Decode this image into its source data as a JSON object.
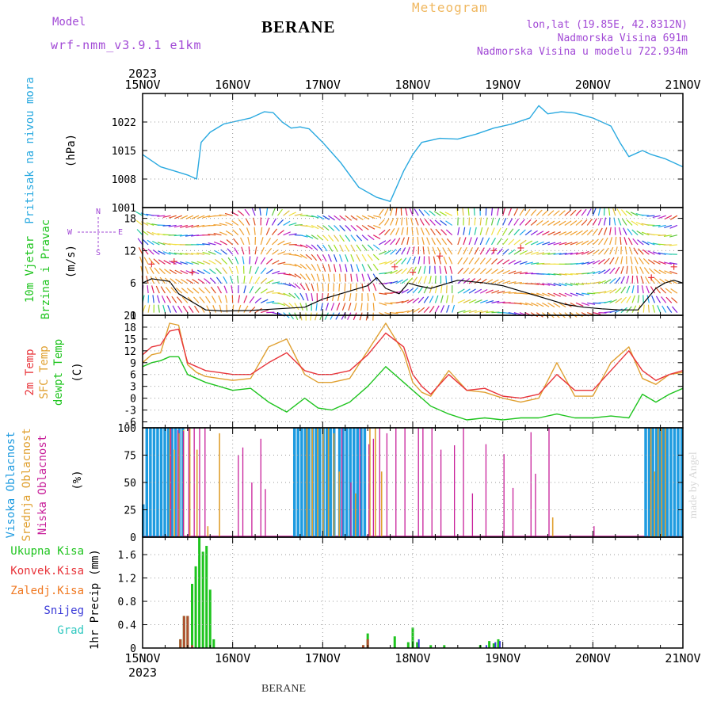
{
  "header": {
    "model_label": "Model",
    "model_name": "wrf-nmm_v3.9.1 e1km",
    "station": "BERANE",
    "title": "Meteogram",
    "lonlat": "lon,lat (19.85E, 42.8312N)",
    "altitude": "Nadmorska Visina 691m",
    "model_altitude": "Nadmorska Visina u modelu 722.934m",
    "footer_station": "BERANE",
    "credit": "made by Angel"
  },
  "colors": {
    "pressure": "#29a9e0",
    "temp2m": "#e8343a",
    "sfc_temp": "#e0a030",
    "dewpt": "#1ec41e",
    "high_cloud": "#1e9be0",
    "mid_cloud": "#e0a030",
    "low_cloud": "#c8209a",
    "total_precip": "#1ec41e",
    "conv_precip": "#e8343a",
    "frozen_precip": "#f07820",
    "snow": "#3b3bd8",
    "hail": "#30c8c0",
    "wind_speed": "#000000",
    "gust": "#e8343a",
    "title_purple": "#a24ad6"
  },
  "chart_data": [
    {
      "type": "line",
      "name": "pressure",
      "ylabel_main": "Pritisak na nivou mora",
      "ylabel_unit": "(hPa)",
      "ylim": [
        1001,
        1029
      ],
      "yticks": [
        1001,
        1008,
        1015,
        1022
      ],
      "x_labels": [
        "15NOV",
        "16NOV",
        "17NOV",
        "18NOV",
        "19NOV",
        "20NOV",
        "21NOV"
      ],
      "x_year": "2023",
      "grid": true,
      "series": [
        {
          "name": "",
          "x": [
            0,
            0.2,
            0.35,
            0.5,
            0.6,
            0.65,
            0.75,
            0.9,
            1.0,
            1.2,
            1.35,
            1.45,
            1.55,
            1.65,
            1.75,
            1.85,
            2.0,
            2.2,
            2.4,
            2.6,
            2.75,
            2.9,
            3.0,
            3.1,
            3.3,
            3.5,
            3.7,
            3.9,
            4.1,
            4.3,
            4.4,
            4.5,
            4.65,
            4.8,
            5.0,
            5.2,
            5.3,
            5.4,
            5.55,
            5.65,
            5.8,
            6.0
          ],
          "values": [
            1014,
            1011,
            1010,
            1009,
            1008,
            1017,
            1019.5,
            1021.5,
            1022,
            1023,
            1024.5,
            1024.3,
            1022,
            1020.5,
            1020.8,
            1020.3,
            1017,
            1012,
            1006,
            1003.5,
            1002.5,
            1010,
            1014,
            1017,
            1018,
            1017.8,
            1019,
            1020.5,
            1021.5,
            1023,
            1026,
            1024,
            1024.5,
            1024.2,
            1023,
            1021,
            1017,
            1013.5,
            1015,
            1014,
            1013,
            1011
          ]
        }
      ]
    },
    {
      "type": "line",
      "name": "wind",
      "ylabel_main": "10m Vjetar",
      "ylabel_sub": "Brzina i Pravac",
      "ylabel_unit": "(m/s)",
      "compass": [
        "N",
        "E",
        "S",
        "W"
      ],
      "ylim": [
        0,
        20
      ],
      "yticks": [
        0,
        6,
        12,
        18
      ],
      "grid": true,
      "series": [
        {
          "name": "",
          "x": [
            0,
            0.1,
            0.3,
            0.4,
            0.5,
            0.6,
            0.7,
            0.9,
            1.2,
            1.5,
            1.8,
            2.0,
            2.2,
            2.5,
            2.6,
            2.7,
            2.85,
            2.95,
            3.05,
            3.2,
            3.5,
            3.8,
            4.0,
            4.2,
            4.5,
            4.7,
            4.9,
            5.1,
            5.3,
            5.5,
            5.6,
            5.7,
            5.8,
            5.9,
            6.0
          ],
          "values": [
            6,
            6.8,
            6.3,
            4,
            3,
            2,
            1,
            0.8,
            0.9,
            1.2,
            1.5,
            3,
            4,
            5.5,
            7,
            5,
            4,
            6,
            5.5,
            5,
            6.5,
            6,
            5.5,
            4.5,
            3,
            2,
            1.5,
            1.2,
            1,
            1,
            3,
            5,
            6,
            6.5,
            6
          ]
        },
        {
          "name": "",
          "x": [
            0.1,
            0.35,
            0.55,
            2.8,
            3.0,
            3.3,
            3.9,
            4.2,
            5.65,
            5.9
          ],
          "values": [
            9.5,
            10,
            8,
            9,
            8,
            11,
            12,
            12.5,
            7,
            9
          ]
        }
      ]
    },
    {
      "type": "line",
      "name": "temperature",
      "ylabel_lines": [
        "2m Temp",
        "SFC Temp",
        "dewpt Temp"
      ],
      "ylabel_unit": "(C)",
      "ylim": [
        -7.5,
        21
      ],
      "yticks": [
        -6,
        -3,
        0,
        3,
        6,
        9,
        12,
        15,
        18,
        21
      ],
      "grid": true,
      "series": [
        {
          "name": "",
          "x": [
            0,
            0.1,
            0.2,
            0.3,
            0.4,
            0.5,
            0.6,
            0.7,
            0.85,
            1.0,
            1.2,
            1.4,
            1.6,
            1.8,
            1.95,
            2.1,
            2.3,
            2.5,
            2.7,
            2.9,
            3.0,
            3.1,
            3.2,
            3.4,
            3.6,
            3.8,
            4.0,
            4.2,
            4.4,
            4.6,
            4.8,
            5.0,
            5.2,
            5.4,
            5.55,
            5.7,
            5.85,
            6.0
          ],
          "values": [
            11,
            13,
            13.5,
            17,
            17.5,
            9,
            8,
            7,
            6.5,
            6,
            6,
            9,
            11.5,
            7,
            6,
            6,
            7,
            11,
            16.5,
            13,
            6,
            3,
            1,
            6,
            2,
            2.5,
            0.5,
            0,
            1,
            6,
            2,
            2,
            7,
            12,
            7,
            4.5,
            6,
            7
          ]
        },
        {
          "name": "",
          "x": [
            0,
            0.1,
            0.2,
            0.3,
            0.4,
            0.5,
            0.6,
            0.7,
            0.85,
            1.0,
            1.2,
            1.4,
            1.6,
            1.8,
            1.95,
            2.1,
            2.3,
            2.5,
            2.7,
            2.9,
            3.0,
            3.1,
            3.2,
            3.4,
            3.6,
            3.8,
            4.0,
            4.2,
            4.4,
            4.6,
            4.8,
            5.0,
            5.2,
            5.4,
            5.55,
            5.7,
            5.85,
            6.0
          ],
          "values": [
            9,
            11,
            11.5,
            19,
            18.5,
            8.5,
            6.5,
            5.5,
            5,
            4.5,
            5,
            13,
            15,
            6,
            4,
            4,
            5,
            12,
            19,
            11.5,
            4,
            1.5,
            0.5,
            7,
            2,
            1.5,
            0,
            -1,
            0,
            9,
            0.5,
            0.5,
            9,
            13,
            5,
            3.5,
            6,
            6.5
          ]
        },
        {
          "name": "",
          "x": [
            0,
            0.1,
            0.2,
            0.3,
            0.4,
            0.5,
            0.6,
            0.7,
            0.85,
            1.0,
            1.2,
            1.4,
            1.6,
            1.8,
            1.95,
            2.1,
            2.3,
            2.5,
            2.7,
            2.9,
            3.0,
            3.1,
            3.2,
            3.4,
            3.6,
            3.8,
            4.0,
            4.2,
            4.4,
            4.6,
            4.8,
            5.0,
            5.2,
            5.4,
            5.55,
            5.7,
            5.85,
            6.0
          ],
          "values": [
            8,
            9,
            9.5,
            10.5,
            10.5,
            6,
            5,
            4,
            3,
            2,
            2.5,
            -1,
            -3.5,
            0,
            -2.5,
            -3,
            -1,
            3,
            8,
            4,
            2,
            0,
            -2,
            -4,
            -5.5,
            -5,
            -5.5,
            -5,
            -5,
            -4,
            -5,
            -5,
            -4.5,
            -5,
            1,
            -1,
            1,
            2.5
          ]
        }
      ]
    },
    {
      "type": "bar",
      "name": "cloud",
      "ylabel_lines": [
        "Visoka Oblacnost",
        "Srednja Oblacnost",
        "Niska Oblacnost"
      ],
      "ylabel_unit": "(%)",
      "ylim": [
        0,
        100
      ],
      "yticks": [
        0,
        25,
        50,
        75,
        100
      ],
      "grid": true,
      "series": [
        {
          "name": "",
          "bars": [
            [
              0.02,
              30
            ],
            [
              0.06,
              100
            ],
            [
              0.1,
              100
            ],
            [
              0.14,
              100
            ],
            [
              0.18,
              100
            ],
            [
              0.22,
              100
            ],
            [
              0.26,
              100
            ],
            [
              0.3,
              100
            ],
            [
              0.34,
              100
            ],
            [
              0.38,
              100
            ],
            [
              0.42,
              100
            ],
            [
              0.46,
              100
            ],
            [
              1.7,
              100
            ],
            [
              1.74,
              100
            ],
            [
              1.78,
              100
            ],
            [
              1.82,
              100
            ],
            [
              1.86,
              100
            ],
            [
              1.9,
              100
            ],
            [
              1.94,
              100
            ],
            [
              1.98,
              100
            ],
            [
              2.02,
              100
            ],
            [
              2.06,
              100
            ],
            [
              2.1,
              100
            ],
            [
              2.14,
              100
            ],
            [
              2.2,
              100
            ],
            [
              2.24,
              100
            ],
            [
              2.28,
              100
            ],
            [
              2.32,
              100
            ],
            [
              2.36,
              100
            ],
            [
              2.4,
              100
            ],
            [
              2.44,
              100
            ],
            [
              2.48,
              100
            ],
            [
              5.6,
              100
            ],
            [
              5.64,
              100
            ],
            [
              5.68,
              100
            ],
            [
              5.72,
              100
            ],
            [
              5.76,
              100
            ],
            [
              5.8,
              100
            ],
            [
              5.84,
              100
            ],
            [
              5.88,
              100
            ],
            [
              5.92,
              100
            ],
            [
              5.96,
              100
            ],
            [
              6.0,
              100
            ]
          ]
        },
        {
          "name": "",
          "bars": [
            [
              0.3,
              100
            ],
            [
              0.35,
              80
            ],
            [
              0.4,
              95
            ],
            [
              0.45,
              98
            ],
            [
              0.52,
              100
            ],
            [
              0.6,
              80
            ],
            [
              0.72,
              10
            ],
            [
              0.85,
              95
            ],
            [
              1.82,
              100
            ],
            [
              1.88,
              100
            ],
            [
              1.94,
              100
            ],
            [
              2.0,
              100
            ],
            [
              2.06,
              100
            ],
            [
              2.12,
              95
            ],
            [
              2.18,
              60
            ],
            [
              2.36,
              40
            ],
            [
              2.52,
              100
            ],
            [
              2.58,
              100
            ],
            [
              2.65,
              60
            ],
            [
              4.55,
              18
            ],
            [
              5.64,
              100
            ],
            [
              5.68,
              60
            ],
            [
              5.72,
              100
            ],
            [
              5.76,
              100
            ],
            [
              5.8,
              100
            ]
          ]
        },
        {
          "name": "",
          "bars": [
            [
              0.3,
              100
            ],
            [
              0.38,
              98
            ],
            [
              0.44,
              97
            ],
            [
              0.5,
              100
            ],
            [
              0.56,
              100
            ],
            [
              0.62,
              100
            ],
            [
              0.68,
              100
            ],
            [
              1.05,
              75
            ],
            [
              1.1,
              82
            ],
            [
              1.2,
              50
            ],
            [
              1.3,
              90
            ],
            [
              1.35,
              44
            ],
            [
              2.2,
              100
            ],
            [
              2.3,
              50
            ],
            [
              2.4,
              100
            ],
            [
              2.5,
              85
            ],
            [
              2.55,
              90
            ],
            [
              2.62,
              100
            ],
            [
              2.7,
              95
            ],
            [
              2.8,
              100
            ],
            [
              2.9,
              100
            ],
            [
              3.05,
              100
            ],
            [
              3.1,
              100
            ],
            [
              3.2,
              100
            ],
            [
              3.3,
              80
            ],
            [
              3.45,
              84
            ],
            [
              3.55,
              100
            ],
            [
              3.65,
              40
            ],
            [
              3.8,
              85
            ],
            [
              4.0,
              76
            ],
            [
              4.1,
              45
            ],
            [
              4.3,
              96
            ],
            [
              4.35,
              58
            ],
            [
              4.5,
              100
            ],
            [
              5.0,
              10
            ]
          ]
        }
      ]
    },
    {
      "type": "bar",
      "name": "precip",
      "legend": [
        "Ukupna Kisa",
        "Konvek.Kisa",
        "Zaledj.Kisa",
        "Snijeg",
        "Grad"
      ],
      "ylabel_main": "1hr Precip",
      "ylabel_unit": "(mm)",
      "ylim": [
        0,
        1.9
      ],
      "yticks": [
        0,
        0.4,
        0.8,
        1.2,
        1.6
      ],
      "grid": true,
      "series": [
        {
          "name": "",
          "bars": [
            [
              0.42,
              0.15
            ],
            [
              0.46,
              0.55
            ],
            [
              0.5,
              0.55
            ],
            [
              0.55,
              1.1
            ],
            [
              0.59,
              1.4
            ],
            [
              0.63,
              1.9
            ],
            [
              0.67,
              1.65
            ],
            [
              0.71,
              1.75
            ],
            [
              0.75,
              1.0
            ],
            [
              0.79,
              0.15
            ],
            [
              2.45,
              0.05
            ],
            [
              2.5,
              0.25
            ],
            [
              2.8,
              0.2
            ],
            [
              2.95,
              0.1
            ],
            [
              3.0,
              0.35
            ],
            [
              3.05,
              0.1
            ],
            [
              3.2,
              0.05
            ],
            [
              3.35,
              0.05
            ],
            [
              3.75,
              0.05
            ],
            [
              3.85,
              0.12
            ],
            [
              3.9,
              0.08
            ],
            [
              3.95,
              0.15
            ]
          ]
        },
        {
          "name": "",
          "bars": [
            [
              0.42,
              0.15
            ],
            [
              0.46,
              0.55
            ],
            [
              0.5,
              0.55
            ],
            [
              0.55,
              0.05
            ],
            [
              2.45,
              0.05
            ],
            [
              2.5,
              0.15
            ]
          ]
        },
        {
          "name": "",
          "bars": []
        },
        {
          "name": "",
          "bars": [
            [
              3.05,
              0.15
            ],
            [
              3.8,
              0.05
            ],
            [
              3.9,
              0.1
            ],
            [
              3.95,
              0.12
            ]
          ]
        },
        {
          "name": "",
          "bars": []
        }
      ]
    }
  ]
}
